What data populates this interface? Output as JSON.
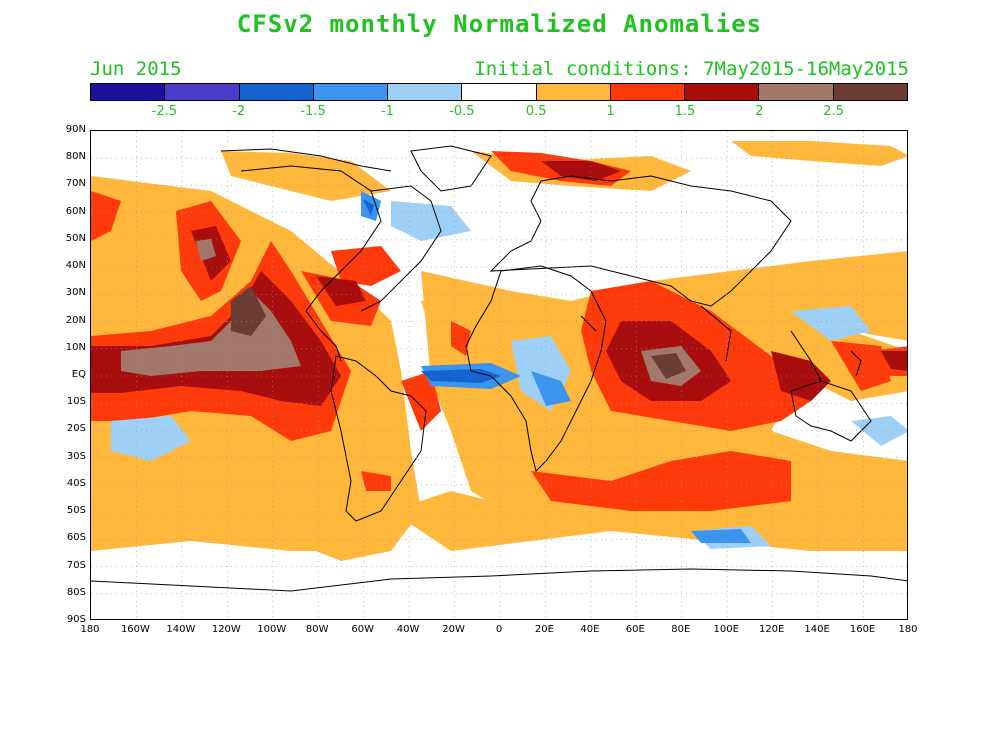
{
  "title": "CFSv2 monthly Normalized Anomalies",
  "month": "Jun 2015",
  "initial_conditions": "Initial conditions: 7May2015-16May2015",
  "colorbar": {
    "colors": [
      "#1a0f9e",
      "#4b3cc9",
      "#1463d1",
      "#3b94f0",
      "#9ed0f7",
      "#ffffff",
      "#ffb83c",
      "#ff3a0a",
      "#a80e0e",
      "#a2786b",
      "#6b3c32"
    ],
    "labels": [
      "-2.5",
      "-2",
      "-1.5",
      "-1",
      "-0.5",
      "0.5",
      "1",
      "1.5",
      "2",
      "2.5"
    ]
  },
  "axes": {
    "lat_labels": [
      "90N",
      "80N",
      "70N",
      "60N",
      "50N",
      "40N",
      "30N",
      "20N",
      "10N",
      "EQ",
      "10S",
      "20S",
      "30S",
      "40S",
      "50S",
      "60S",
      "70S",
      "80S",
      "90S"
    ],
    "lon_labels": [
      "180",
      "160W",
      "140W",
      "120W",
      "100W",
      "80W",
      "60W",
      "40W",
      "20W",
      "0",
      "20E",
      "40E",
      "60E",
      "80E",
      "100E",
      "120E",
      "140E",
      "160E",
      "180"
    ]
  },
  "map_colors": {
    "pale_orange": "#ffb83c",
    "red": "#ff3a0a",
    "dark_red": "#a80e0e",
    "brown": "#a2786b",
    "dark_brown": "#6b3c32",
    "light_blue": "#9ed0f7",
    "blue": "#3b94f0",
    "mid_blue": "#1463d1",
    "dark_blue": "#1a0f9e",
    "coast": "#000000"
  }
}
